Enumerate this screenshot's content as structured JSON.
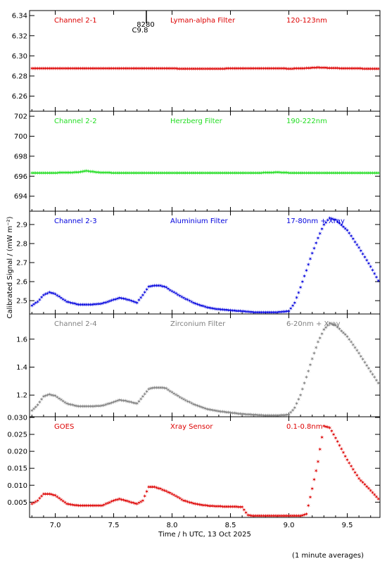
{
  "footer_note": "(1 minute averages)",
  "flare_label_top": "8280",
  "flare_label_bottom": "C9.8",
  "xlabel": "Time / h UTC, 13 Oct 2025",
  "ylabel": "Calibrated Signal  / (mW m⁻²)",
  "chart_data": [
    {
      "type": "scatter",
      "channel": "Channel 2-1",
      "filter": "Lyman-alpha Filter",
      "band": "120-123nm",
      "color": "#dd0000",
      "ylim": [
        6.245,
        6.345
      ],
      "yticks": [
        "6.26",
        "6.28",
        "6.30",
        "6.32",
        "6.34"
      ],
      "yticks_v": [
        6.26,
        6.28,
        6.3,
        6.32,
        6.34
      ],
      "x": [
        6.8,
        7.0,
        7.25,
        7.5,
        7.75,
        8.0,
        8.25,
        8.5,
        8.75,
        8.9,
        9.0,
        9.1,
        9.2,
        9.25,
        9.3,
        9.4,
        9.5,
        9.6,
        9.78
      ],
      "y": [
        6.2875,
        6.2875,
        6.2878,
        6.2876,
        6.2875,
        6.2875,
        6.2874,
        6.2875,
        6.2875,
        6.2877,
        6.2874,
        6.2876,
        6.2882,
        6.2886,
        6.2883,
        6.2879,
        6.2876,
        6.2875,
        6.2874
      ]
    },
    {
      "type": "scatter",
      "channel": "Channel 2-2",
      "filter": "Herzberg Filter",
      "band": "190-222nm",
      "color": "#22dd22",
      "ylim": [
        692.5,
        702.5
      ],
      "yticks": [
        "694",
        "696",
        "698",
        "700",
        "702"
      ],
      "yticks_v": [
        694,
        696,
        698,
        700,
        702
      ],
      "x": [
        6.8,
        7.0,
        7.2,
        7.27,
        7.35,
        7.5,
        7.75,
        8.0,
        8.25,
        8.5,
        8.75,
        8.9,
        9.0,
        9.25,
        9.5,
        9.78
      ],
      "y": [
        696.35,
        696.35,
        696.4,
        696.55,
        696.4,
        696.35,
        696.35,
        696.35,
        696.35,
        696.35,
        696.35,
        696.4,
        696.35,
        696.35,
        696.35,
        696.35
      ]
    },
    {
      "type": "scatter",
      "channel": "Channel 2-3",
      "filter": "Aluminium Filter",
      "band": "17-80nm + Xray",
      "color": "#0000dd",
      "ylim": [
        2.43,
        2.97
      ],
      "yticks": [
        "2.5",
        "2.6",
        "2.7",
        "2.8",
        "2.9"
      ],
      "yticks_v": [
        2.5,
        2.6,
        2.7,
        2.8,
        2.9
      ],
      "x": [
        6.8,
        6.85,
        6.9,
        6.95,
        7.0,
        7.1,
        7.2,
        7.3,
        7.4,
        7.5,
        7.55,
        7.6,
        7.7,
        7.75,
        7.8,
        7.85,
        7.9,
        7.95,
        8.0,
        8.1,
        8.2,
        8.3,
        8.4,
        8.5,
        8.6,
        8.7,
        8.8,
        8.9,
        9.0,
        9.05,
        9.1,
        9.15,
        9.2,
        9.25,
        9.3,
        9.35,
        9.4,
        9.5,
        9.6,
        9.7,
        9.78
      ],
      "y": [
        2.475,
        2.495,
        2.53,
        2.545,
        2.535,
        2.495,
        2.48,
        2.48,
        2.485,
        2.505,
        2.515,
        2.51,
        2.49,
        2.53,
        2.575,
        2.58,
        2.58,
        2.57,
        2.55,
        2.515,
        2.485,
        2.465,
        2.455,
        2.45,
        2.445,
        2.44,
        2.44,
        2.44,
        2.445,
        2.49,
        2.57,
        2.66,
        2.75,
        2.83,
        2.9,
        2.935,
        2.925,
        2.87,
        2.78,
        2.68,
        2.59
      ]
    },
    {
      "type": "scatter",
      "channel": "Channel 2-4",
      "filter": "Zirconium Filter",
      "band": "6-20nm + Xray",
      "color": "#808080",
      "ylim": [
        1.045,
        1.78
      ],
      "yticks": [
        "1.2",
        "1.4",
        "1.6"
      ],
      "yticks_v": [
        1.2,
        1.4,
        1.6
      ],
      "x": [
        6.8,
        6.85,
        6.9,
        6.95,
        7.0,
        7.1,
        7.2,
        7.3,
        7.4,
        7.5,
        7.55,
        7.6,
        7.7,
        7.75,
        7.8,
        7.85,
        7.9,
        7.95,
        8.0,
        8.1,
        8.2,
        8.3,
        8.4,
        8.5,
        8.6,
        8.7,
        8.8,
        8.9,
        9.0,
        9.05,
        9.1,
        9.15,
        9.2,
        9.25,
        9.3,
        9.35,
        9.4,
        9.5,
        9.6,
        9.7,
        9.78
      ],
      "y": [
        1.09,
        1.13,
        1.19,
        1.205,
        1.195,
        1.14,
        1.12,
        1.12,
        1.125,
        1.15,
        1.165,
        1.16,
        1.14,
        1.19,
        1.245,
        1.255,
        1.255,
        1.25,
        1.22,
        1.17,
        1.13,
        1.1,
        1.085,
        1.075,
        1.065,
        1.06,
        1.055,
        1.055,
        1.06,
        1.11,
        1.2,
        1.33,
        1.46,
        1.58,
        1.67,
        1.715,
        1.7,
        1.62,
        1.5,
        1.37,
        1.27
      ]
    },
    {
      "type": "scatter",
      "channel": "GOES",
      "filter": "Xray Sensor",
      "band": "0.1-0.8nm",
      "color": "#dd0000",
      "ylim": [
        0.0005,
        0.0302
      ],
      "yticks": [
        "0.005",
        "0.010",
        "0.015",
        "0.020",
        "0.025",
        "0.030"
      ],
      "yticks_v": [
        0.005,
        0.01,
        0.015,
        0.02,
        0.025,
        0.03
      ],
      "x": [
        6.8,
        6.85,
        6.9,
        6.95,
        7.0,
        7.1,
        7.2,
        7.3,
        7.4,
        7.5,
        7.55,
        7.6,
        7.7,
        7.75,
        7.8,
        7.85,
        7.9,
        8.0,
        8.1,
        8.2,
        8.3,
        8.4,
        8.5,
        8.55,
        8.6,
        8.65,
        8.7,
        8.8,
        8.9,
        9.0,
        9.1,
        9.15,
        9.2,
        9.25,
        9.28,
        9.3,
        9.35,
        9.4,
        9.5,
        9.6,
        9.7,
        9.78
      ],
      "y": [
        0.0045,
        0.0055,
        0.0075,
        0.0075,
        0.007,
        0.0045,
        0.004,
        0.004,
        0.004,
        0.0055,
        0.006,
        0.0055,
        0.0045,
        0.0055,
        0.0095,
        0.0095,
        0.009,
        0.0075,
        0.0055,
        0.0045,
        0.004,
        0.0038,
        0.0037,
        0.0037,
        0.0036,
        0.0012,
        0.001,
        0.001,
        0.001,
        0.001,
        0.001,
        0.0015,
        0.009,
        0.017,
        0.0235,
        0.0275,
        0.027,
        0.024,
        0.0175,
        0.012,
        0.0085,
        0.0055
      ]
    }
  ],
  "xaxis": {
    "xlim": [
      6.78,
      9.78
    ],
    "ticks": [
      "7.0",
      "7.5",
      "8.0",
      "8.5",
      "9.0",
      "9.5"
    ],
    "ticks_v": [
      7.0,
      7.5,
      8.0,
      8.5,
      9.0,
      9.5
    ]
  },
  "flare_marker_time": 7.78
}
